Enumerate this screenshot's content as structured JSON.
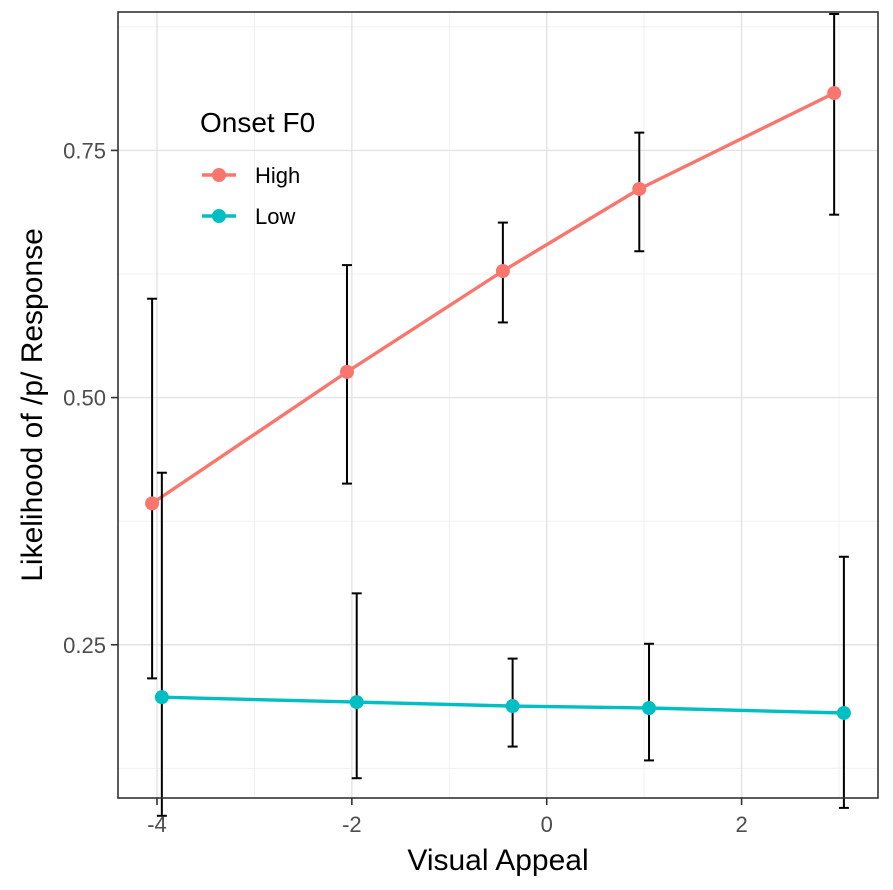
{
  "chart_data": {
    "type": "line",
    "title": "",
    "xlabel": "Visual Appeal",
    "ylabel": "Likelihood of /p/ Response",
    "xlim": [
      -4.4,
      3.4
    ],
    "ylim": [
      0.095,
      0.89
    ],
    "x_ticks": [
      -4,
      -2,
      0,
      2
    ],
    "x_tick_labels": [
      "-4",
      "-2",
      "0",
      "2"
    ],
    "x_minor_ticks": [
      -3,
      -1,
      1,
      3
    ],
    "y_ticks": [
      0.25,
      0.5,
      0.75
    ],
    "y_tick_labels": [
      "0.25",
      "0.50",
      "0.75"
    ],
    "y_minor_ticks": [
      0.125,
      0.375,
      0.625,
      0.875
    ],
    "grid": true,
    "legend": {
      "title": "Onset F0",
      "placement": "top-left",
      "entries": [
        "High",
        "Low"
      ]
    },
    "series": [
      {
        "name": "High",
        "color": "#F8766D",
        "x": [
          -4.05,
          -2.05,
          -0.45,
          0.95,
          2.95
        ],
        "y": [
          0.393,
          0.526,
          0.628,
          0.711,
          0.808
        ],
        "err_low": [
          0.216,
          0.413,
          0.576,
          0.648,
          0.685
        ],
        "err_high": [
          0.6,
          0.634,
          0.677,
          0.768,
          0.888
        ]
      },
      {
        "name": "Low",
        "color": "#00BFC4",
        "x": [
          -3.95,
          -1.95,
          -0.35,
          1.05,
          3.05
        ],
        "y": [
          0.197,
          0.192,
          0.188,
          0.186,
          0.181
        ],
        "err_low": [
          0.077,
          0.115,
          0.147,
          0.133,
          0.085
        ],
        "err_high": [
          0.424,
          0.302,
          0.236,
          0.251,
          0.339
        ]
      }
    ]
  }
}
